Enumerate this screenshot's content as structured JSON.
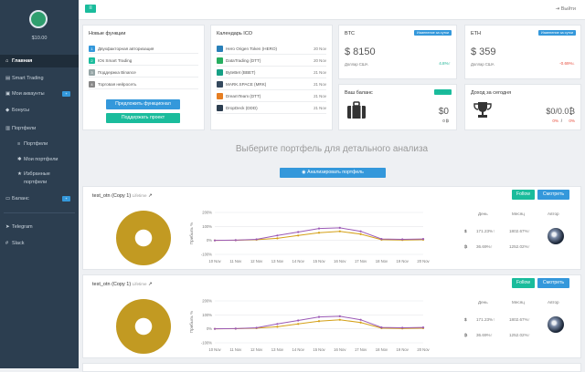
{
  "sidebar": {
    "balance": "$10.00",
    "items": [
      {
        "label": "Главная",
        "icon": "home-icon"
      },
      {
        "label": "Smart Trading",
        "icon": "trading-icon"
      },
      {
        "label": "Мои аккаунты",
        "icon": "accounts-icon",
        "pill": "+"
      },
      {
        "label": "Бонусы",
        "icon": "bonus-icon"
      },
      {
        "label": "Портфели",
        "icon": "portfolio-icon"
      },
      {
        "label": "Портфели",
        "icon": "list-icon"
      },
      {
        "label": "Мои портфели",
        "icon": "gear-icon"
      },
      {
        "label": "Избранные",
        "icon": "star-icon"
      },
      {
        "label": "портфели",
        "icon": ""
      },
      {
        "label": "Баланс",
        "icon": "wallet-icon",
        "pill": "+"
      },
      {
        "label": "Telegram",
        "icon": "telegram-icon"
      },
      {
        "label": "Slack",
        "icon": "slack-icon"
      }
    ]
  },
  "topbar": {
    "exit_label": "Выйти"
  },
  "new_features": {
    "title": "Новые функции",
    "items": [
      {
        "n": "1",
        "label": "Двухфакторная авторизация"
      },
      {
        "n": "2",
        "label": "IOs Smart Trading"
      },
      {
        "n": "3",
        "label": "Поддержка Binance"
      },
      {
        "n": "4",
        "label": "Торговая нейросеть"
      }
    ],
    "suggest_label": "Предложить функционал",
    "support_label": "Поддержать проект"
  },
  "ico": {
    "title": "Календарь ICO",
    "items": [
      {
        "name": "Hero Origen Token  (HERO)",
        "date": "20 Nov"
      },
      {
        "name": "DataTrading  (DTT)",
        "date": "20 Nov"
      },
      {
        "name": "ByteBet  (BBET)",
        "date": "21 Nov"
      },
      {
        "name": "MARK.SPACE  (MRK)",
        "date": "21 Nov"
      },
      {
        "name": "DreamTeam  (DTT)",
        "date": "21 Nov"
      },
      {
        "name": "DropDeck  (DDD)",
        "date": "21 Nov"
      }
    ]
  },
  "btc": {
    "title": "BTC",
    "badge": "Изменение за сутки",
    "price": "$ 8150",
    "sub": "Доллар США",
    "pct": "4.8%↑"
  },
  "eth": {
    "title": "ETH",
    "badge": "Изменение за сутки",
    "price": "$ 359",
    "sub": "Доллар США",
    "pct": "-0.69%↓"
  },
  "balance_card": {
    "title": "Ваш баланс",
    "badge": "Сейчас",
    "usd": "$0",
    "btc": "0 ₿"
  },
  "income_card": {
    "title": "Доход за сегодня",
    "value": "$0/0.0₿",
    "pcts": "0%",
    "pctb": "0%"
  },
  "section_title": "Выберите портфель для детального анализа",
  "analyze_label": "Анализировать портфель",
  "portfolios": [
    {
      "name": "test_otn (Copy 1)",
      "tag": "Lifetime",
      "follow": "Follow",
      "view": "Смотреть",
      "headers": [
        "День",
        "Месяц",
        "Автор"
      ],
      "rows": [
        {
          "sym": "$",
          "day": "171.23%↑",
          "month": "1802.67%↑"
        },
        {
          "sym": "₿",
          "day": "36.69%↑",
          "month": "1252.02%↑"
        }
      ],
      "axis_label": "Прибыль %"
    },
    {
      "name": "test_otn (Copy 1)",
      "tag": "Lifetime",
      "follow": "Follow",
      "view": "Смотреть",
      "headers": [
        "День",
        "Месяц",
        "Автор"
      ],
      "rows": [
        {
          "sym": "$",
          "day": "171.23%↑",
          "month": "1802.67%↑"
        },
        {
          "sym": "₿",
          "day": "36.69%↑",
          "month": "1252.02%↑"
        }
      ],
      "axis_label": "Прибыль %"
    }
  ],
  "chart_data": {
    "type": "line",
    "categories": [
      "10 Nov",
      "11 Nov",
      "12 Nov",
      "13 Nov",
      "14 Nov",
      "15 Nov",
      "16 Nov",
      "17 Nov",
      "18 Nov",
      "19 Nov",
      "20 Nov"
    ],
    "yticks": [
      "200%",
      "100%",
      "0%",
      "-100%"
    ],
    "ylim": [
      -100,
      200
    ],
    "series": [
      {
        "name": "$",
        "color": "#9b59b6",
        "values": [
          0,
          2,
          8,
          35,
          60,
          85,
          90,
          65,
          10,
          8,
          10
        ]
      },
      {
        "name": "₿",
        "color": "#d4a017",
        "values": [
          0,
          1,
          5,
          15,
          35,
          55,
          65,
          45,
          5,
          3,
          5
        ]
      }
    ]
  }
}
